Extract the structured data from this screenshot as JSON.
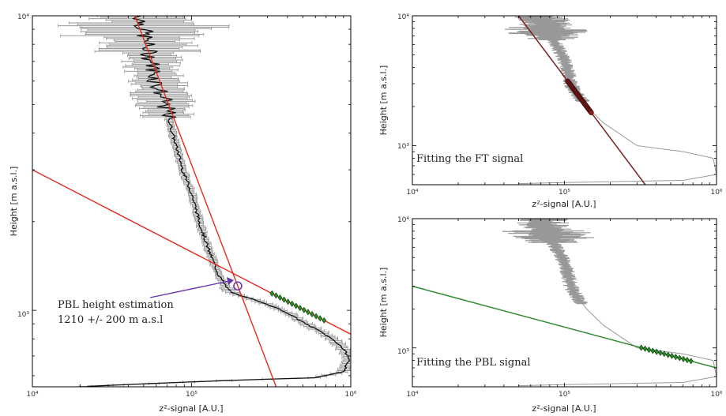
{
  "chart_data": [
    {
      "type": "line",
      "xlabel": "z²-signal [A.U.]",
      "ylabel": "Height [m a.s.l.]",
      "x_scale": "log",
      "y_scale": "log",
      "xlim": [
        10000,
        1000000
      ],
      "ylim": [
        550,
        10000
      ],
      "x_ticks": [
        "10⁴",
        "10⁵",
        "10⁶"
      ],
      "y_ticks": [
        "10³",
        "10⁴"
      ],
      "series": [
        {
          "role": "signal-profile",
          "color": "#111111",
          "x": [
            48000,
            50000,
            52000,
            56000,
            60000,
            68000,
            76000,
            88000,
            100000,
            112000,
            128000,
            150000,
            165000,
            180000,
            200000,
            230000,
            300000,
            400000,
            520000,
            640000,
            760000,
            860000,
            930000,
            980000,
            900000,
            600000,
            200000,
            40000,
            22000
          ],
          "y": [
            10000,
            9000,
            8000,
            7000,
            6000,
            5000,
            4000,
            3000,
            2500,
            2000,
            1600,
            1300,
            1200,
            1150,
            1120,
            1100,
            1050,
            980,
            900,
            850,
            800,
            760,
            720,
            680,
            620,
            590,
            580,
            560,
            552
          ]
        },
        {
          "role": "error-bars",
          "color": "#999999"
        },
        {
          "role": "ft-fit",
          "color": "#e62a1d",
          "x": [
            44000,
            340000
          ],
          "y": [
            10000,
            550
          ]
        },
        {
          "role": "pbl-fit",
          "color": "#e62a1d",
          "x": [
            10000,
            1000000
          ],
          "y": [
            3000,
            830
          ]
        },
        {
          "role": "fit-points",
          "color": "#2a8a2a"
        }
      ],
      "marker": {
        "x": 195000,
        "y": 1210
      },
      "annotations": [
        "PBL height estimation",
        "1210 +/- 200 m a.s.l"
      ]
    },
    {
      "type": "line",
      "xlabel": "z²-signal [A.U.]",
      "ylabel": "Height [m a.s.l.]",
      "x_scale": "log",
      "y_scale": "log",
      "xlim": [
        10000,
        1000000
      ],
      "ylim": [
        500,
        10000
      ],
      "x_ticks": [
        "10⁴",
        "10⁵",
        "10⁶"
      ],
      "y_ticks": [
        "10³",
        "10⁴"
      ],
      "series": [
        {
          "role": "signal-profile",
          "color": "#999999",
          "x": [
            70000,
            78000,
            88000,
            96000,
            104000,
            110000,
            120000,
            140000,
            180000,
            300000,
            600000,
            950000,
            1000000,
            600000,
            100000,
            50000
          ],
          "y": [
            10000,
            7500,
            6000,
            5000,
            4000,
            3000,
            2500,
            2000,
            1500,
            1000,
            900,
            800,
            600,
            540,
            520,
            510
          ]
        },
        {
          "role": "ft-fit",
          "color": "#7a2020",
          "x": [
            50000,
            340000
          ],
          "y": [
            10000,
            500
          ]
        },
        {
          "role": "fit-points",
          "color": "#8a2020"
        }
      ],
      "annotations": [
        "Fitting the FT signal"
      ]
    },
    {
      "type": "line",
      "xlabel": "z²-signal [A.U.]",
      "ylabel": "Height [m a.s.l.]",
      "x_scale": "log",
      "y_scale": "log",
      "xlim": [
        10000,
        1000000
      ],
      "ylim": [
        500,
        10000
      ],
      "x_ticks": [
        "10⁴",
        "10⁵",
        "10⁶"
      ],
      "y_ticks": [
        "10³",
        "10⁴"
      ],
      "series": [
        {
          "role": "signal-profile",
          "color": "#999999",
          "x": [
            70000,
            78000,
            88000,
            96000,
            104000,
            110000,
            120000,
            140000,
            180000,
            300000,
            600000,
            950000,
            1000000,
            600000,
            100000,
            50000
          ],
          "y": [
            10000,
            7500,
            6000,
            5000,
            4000,
            3000,
            2500,
            2000,
            1500,
            1000,
            900,
            800,
            600,
            540,
            520,
            510
          ]
        },
        {
          "role": "pbl-fit",
          "color": "#2f8a2f",
          "x": [
            10000,
            1000000
          ],
          "y": [
            3000,
            700
          ]
        },
        {
          "role": "fit-points",
          "color": "#2a8a2a"
        }
      ],
      "annotations": [
        "Fitting the PBL signal"
      ]
    }
  ]
}
